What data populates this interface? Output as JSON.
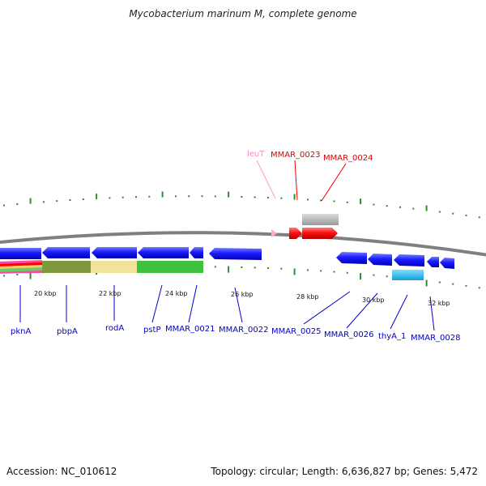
{
  "title": "Mycobacterium marinum M, complete genome",
  "footer": {
    "accession": "Accession: NC_010612",
    "summary": "Topology: circular; Length: 6,636,827 bp; Genes: 5,472"
  },
  "colors": {
    "backbone": "#7f7f7f",
    "tick": "#2e8b2e",
    "cds_forward": "#ff0000",
    "cds_reverse": "#0000ff",
    "trna": "#ff99cc",
    "other_feature": "#c0c0c0",
    "cyan_feature": "#22bbee"
  },
  "scale_labels": [
    "20 kbp",
    "22 kbp",
    "24 kbp",
    "26 kbp",
    "28 kbp",
    "30 kbp",
    "32 kbp"
  ],
  "genes_top": [
    {
      "name": "leuT",
      "type": "trna"
    },
    {
      "name": "MMAR_0023",
      "type": "cds_forward"
    },
    {
      "name": "MMAR_0024",
      "type": "cds_forward"
    }
  ],
  "genes_bottom": [
    {
      "name": "pknA"
    },
    {
      "name": "pbpA"
    },
    {
      "name": "rodA"
    },
    {
      "name": "pstP"
    },
    {
      "name": "MMAR_0021"
    },
    {
      "name": "MMAR_0022"
    },
    {
      "name": "MMAR_0025"
    },
    {
      "name": "MMAR_0026"
    },
    {
      "name": "thyA_1"
    },
    {
      "name": "MMAR_0028"
    }
  ]
}
